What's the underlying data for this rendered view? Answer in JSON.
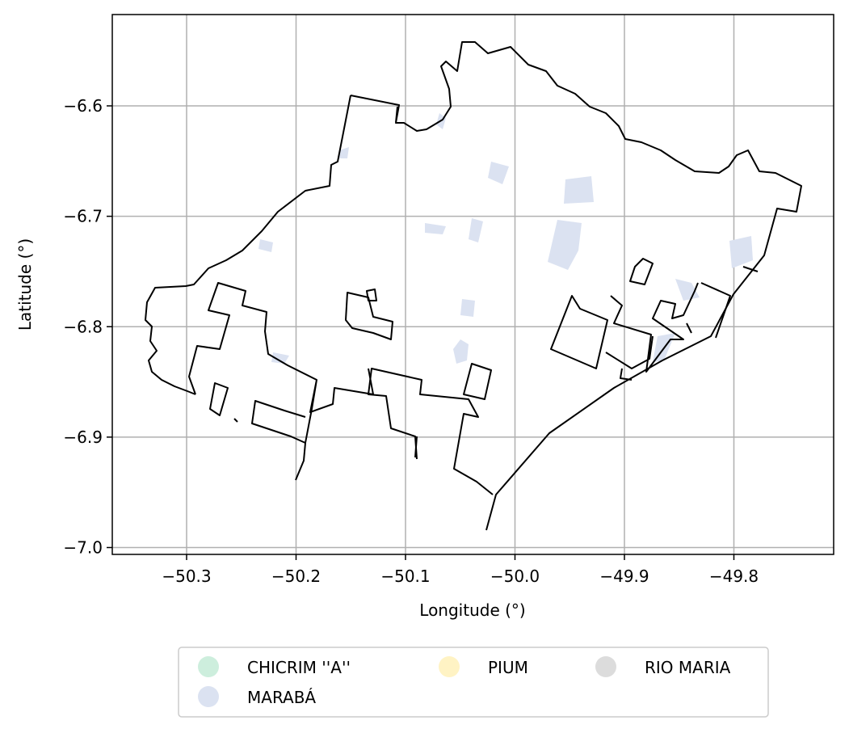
{
  "map": {
    "xlabel": "Longitude (°)",
    "ylabel": "Latitude (°)",
    "x_ticks": [
      {
        "value": -50.3,
        "label": "−50.3"
      },
      {
        "value": -50.2,
        "label": "−50.2"
      },
      {
        "value": -50.1,
        "label": "−50.1"
      },
      {
        "value": -50.0,
        "label": "−50.0"
      },
      {
        "value": -49.9,
        "label": "−49.9"
      },
      {
        "value": -49.8,
        "label": "−49.8"
      }
    ],
    "y_ticks": [
      {
        "value": -6.6,
        "label": "−6.6"
      },
      {
        "value": -6.7,
        "label": "−6.7"
      },
      {
        "value": -6.8,
        "label": "−6.8"
      },
      {
        "value": -6.9,
        "label": "−6.9"
      },
      {
        "value": -7.0,
        "label": "−7.0"
      }
    ],
    "grid": true,
    "legend_placement": "bottom-center"
  },
  "legend": {
    "items": [
      {
        "name": "CHICRIM ''A''",
        "color": "#cdeedd"
      },
      {
        "name": "PIUM",
        "color": "#fff3c4"
      },
      {
        "name": "RIO MARIA",
        "color": "#dcdcdc"
      },
      {
        "name": "MARABÁ",
        "color": "#dbe2f1"
      }
    ]
  },
  "colors": {
    "boundary": "#000000",
    "grid": "#b0b0b0",
    "area_fill": "#dbe2f1"
  }
}
